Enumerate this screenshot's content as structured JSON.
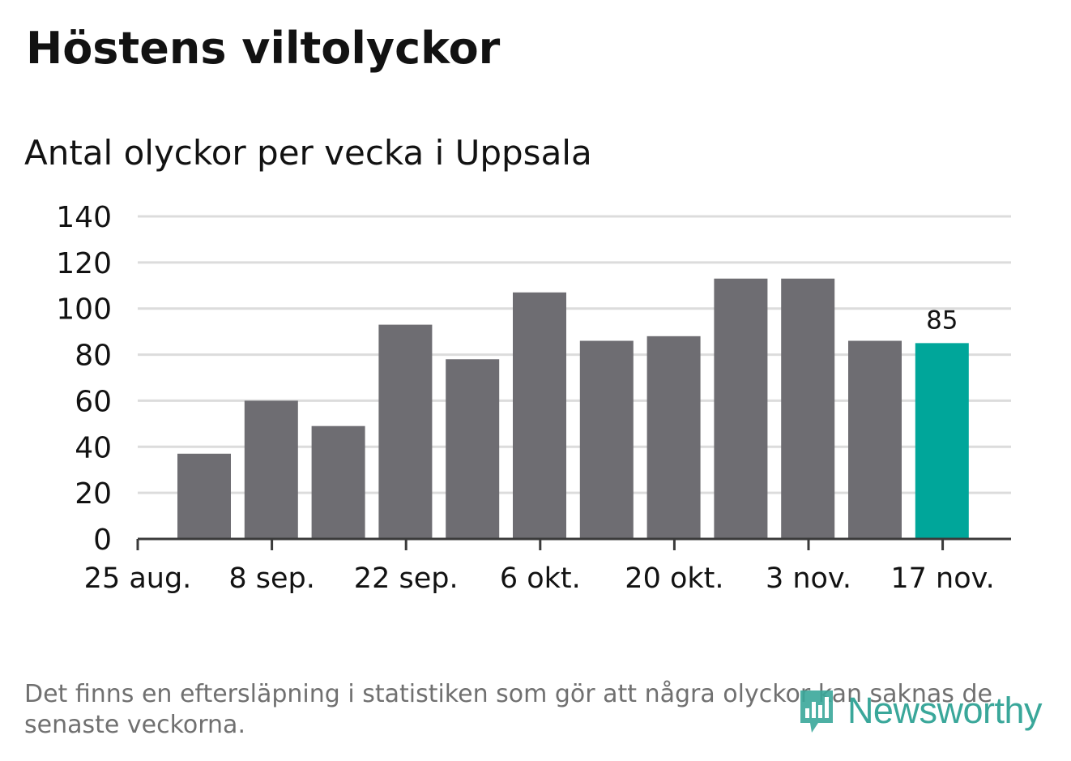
{
  "title": "Höstens viltolyckor",
  "subtitle": "Antal olyckor per vecka i Uppsala",
  "footnote": "Det finns en eftersläpning i statistiken som gör att några olyckor kan saknas de senaste veckorna.",
  "logo_text": "Newsworthy",
  "colors": {
    "bar": "#6e6d72",
    "highlight": "#00a69a",
    "grid": "#dcdcdc",
    "axis": "#3a3a3a",
    "text": "#121212",
    "footnote": "#707070",
    "logo": "#3aa79a"
  },
  "chart_data": {
    "type": "bar",
    "title": "Höstens viltolyckor",
    "subtitle": "Antal olyckor per vecka i Uppsala",
    "x_tick_labels": [
      "25 aug.",
      "8 sep.",
      "22 sep.",
      "6 okt.",
      "20 okt.",
      "3 nov.",
      "17 nov."
    ],
    "values": [
      37,
      60,
      49,
      93,
      78,
      107,
      86,
      88,
      113,
      113,
      86,
      85
    ],
    "highlight_index": 11,
    "highlight_label": "85",
    "y_ticks": [
      0,
      20,
      40,
      60,
      80,
      100,
      120,
      140
    ],
    "ylim": [
      0,
      140
    ],
    "grid": true,
    "legend": false
  }
}
